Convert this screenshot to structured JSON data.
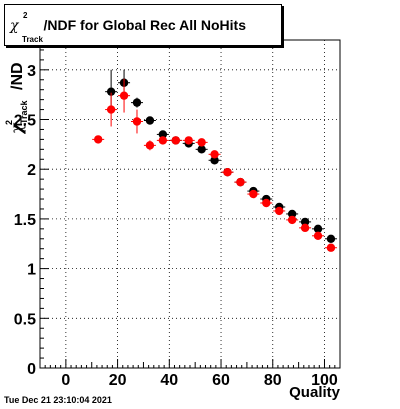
{
  "title": {
    "chi_symbol": "χ",
    "superscript": "2",
    "subscript": "Track",
    "text": "/NDF for Global Rec All NoHits"
  },
  "timestamp": "Tue Dec 21 23:10:04 2021",
  "chart_data": {
    "type": "scatter",
    "xlabel": "Quality",
    "ylabel_prefix": "χ",
    "ylabel_sup": "2",
    "ylabel_sub": "Track",
    "ylabel_suffix": "/ND",
    "xlim": [
      -10,
      106
    ],
    "ylim": [
      0,
      3.3
    ],
    "x_ticks": [
      0,
      20,
      40,
      60,
      80,
      100
    ],
    "y_ticks": [
      0,
      0.5,
      1,
      1.5,
      2,
      2.5,
      3
    ],
    "y_tick_labels": [
      "0",
      "0.5",
      "1",
      "1.5",
      "2",
      "2.5",
      "3"
    ],
    "grid": true,
    "series": [
      {
        "color": "#000000",
        "points": [
          {
            "x": 17.5,
            "y": 2.78,
            "err": 0.22
          },
          {
            "x": 22.5,
            "y": 2.87,
            "err": 0.13
          },
          {
            "x": 27.5,
            "y": 2.67,
            "err": 0.05
          },
          {
            "x": 32.5,
            "y": 2.49,
            "err": 0.03
          },
          {
            "x": 37.5,
            "y": 2.35,
            "err": 0.03
          },
          {
            "x": 42.5,
            "y": 2.29,
            "err": 0.02
          },
          {
            "x": 47.5,
            "y": 2.26,
            "err": 0.02
          },
          {
            "x": 52.5,
            "y": 2.2,
            "err": 0.02
          },
          {
            "x": 57.5,
            "y": 2.09,
            "err": 0.02
          },
          {
            "x": 62.5,
            "y": 1.97,
            "err": 0.02
          },
          {
            "x": 67.5,
            "y": 1.87,
            "err": 0.02
          },
          {
            "x": 72.5,
            "y": 1.78,
            "err": 0.02
          },
          {
            "x": 77.5,
            "y": 1.7,
            "err": 0.02
          },
          {
            "x": 82.5,
            "y": 1.62,
            "err": 0.02
          },
          {
            "x": 87.5,
            "y": 1.55,
            "err": 0.02
          },
          {
            "x": 92.5,
            "y": 1.47,
            "err": 0.02
          },
          {
            "x": 97.5,
            "y": 1.4,
            "err": 0.02
          },
          {
            "x": 102.5,
            "y": 1.3,
            "err": 0.02
          }
        ]
      },
      {
        "color": "#ff0000",
        "points": [
          {
            "x": 12.5,
            "y": 2.3,
            "err": 0.0
          },
          {
            "x": 17.5,
            "y": 2.6,
            "err": 0.17
          },
          {
            "x": 22.5,
            "y": 2.74,
            "err": 0.17
          },
          {
            "x": 27.5,
            "y": 2.48,
            "err": 0.12
          },
          {
            "x": 32.5,
            "y": 2.24,
            "err": 0.05
          },
          {
            "x": 37.5,
            "y": 2.29,
            "err": 0.04
          },
          {
            "x": 42.5,
            "y": 2.29,
            "err": 0.03
          },
          {
            "x": 47.5,
            "y": 2.29,
            "err": 0.03
          },
          {
            "x": 52.5,
            "y": 2.27,
            "err": 0.03
          },
          {
            "x": 57.5,
            "y": 2.15,
            "err": 0.03
          },
          {
            "x": 62.5,
            "y": 1.97,
            "err": 0.02
          },
          {
            "x": 67.5,
            "y": 1.87,
            "err": 0.02
          },
          {
            "x": 72.5,
            "y": 1.75,
            "err": 0.02
          },
          {
            "x": 77.5,
            "y": 1.66,
            "err": 0.02
          },
          {
            "x": 82.5,
            "y": 1.58,
            "err": 0.02
          },
          {
            "x": 87.5,
            "y": 1.49,
            "err": 0.02
          },
          {
            "x": 92.5,
            "y": 1.41,
            "err": 0.02
          },
          {
            "x": 97.5,
            "y": 1.33,
            "err": 0.02
          },
          {
            "x": 102.5,
            "y": 1.21,
            "err": 0.02
          }
        ]
      }
    ]
  }
}
